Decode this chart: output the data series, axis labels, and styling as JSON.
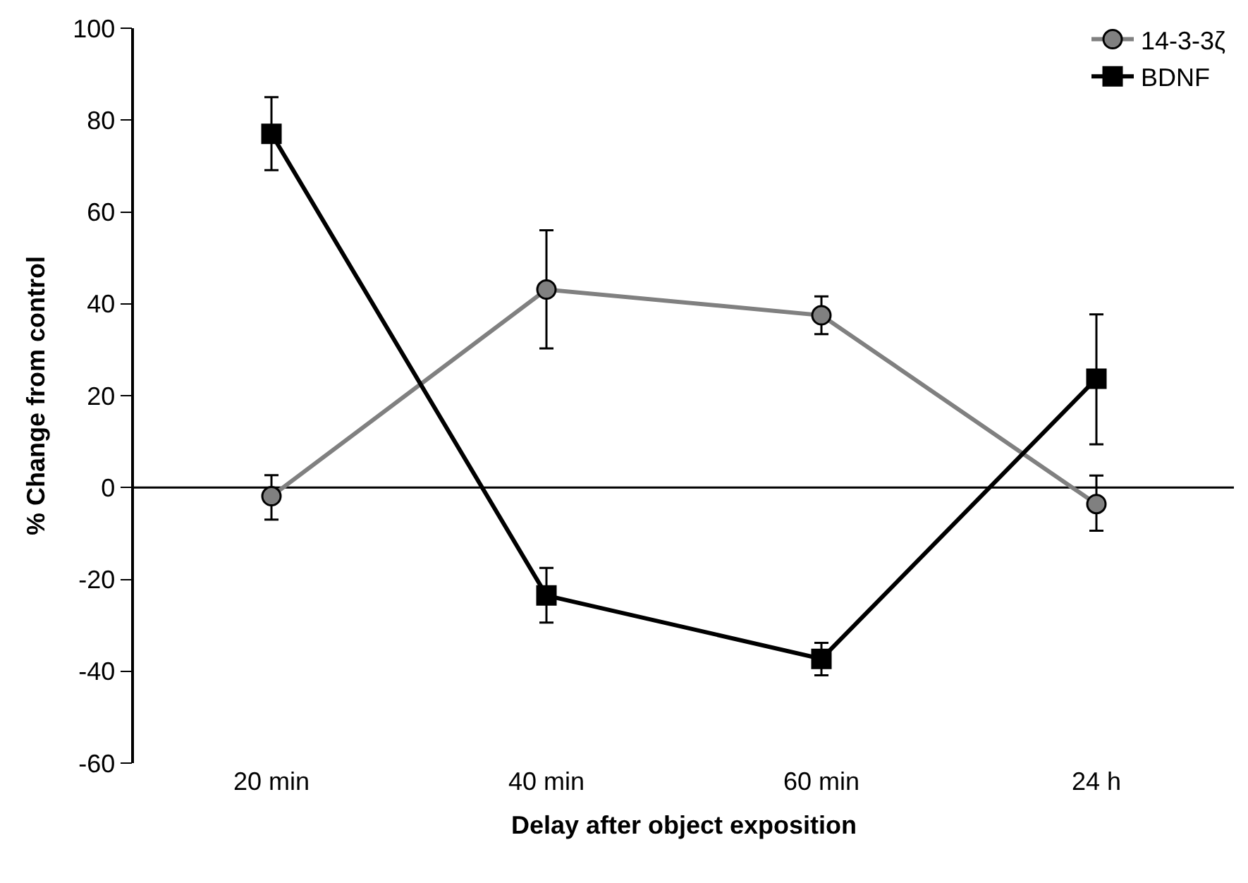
{
  "chart_data": {
    "type": "line",
    "xlabel": "Delay after object exposition",
    "ylabel": "% Change from control",
    "categories": [
      "20 min",
      "40 min",
      "60 min",
      "24 h"
    ],
    "series": [
      {
        "name": "14-3-3ζ",
        "color": "#808080",
        "marker": "circle",
        "values": [
          -1.9,
          43.1,
          37.5,
          -3.6
        ],
        "errors": [
          [
            -7.0,
            2.7
          ],
          [
            30.3,
            56.0
          ],
          [
            33.4,
            41.6
          ],
          [
            -9.4,
            2.6
          ]
        ]
      },
      {
        "name": "BDNF",
        "color": "#000000",
        "marker": "square",
        "values": [
          77.0,
          -23.5,
          -37.3,
          23.7
        ],
        "errors": [
          [
            69.1,
            85.0
          ],
          [
            -29.4,
            -17.5
          ],
          [
            -40.9,
            -33.8
          ],
          [
            9.4,
            37.7
          ]
        ]
      }
    ],
    "ylim": [
      -60,
      100
    ],
    "yticks": [
      -60,
      -40,
      -20,
      0,
      20,
      40,
      60,
      80,
      100
    ],
    "grid": false,
    "ref_lines": [
      {
        "axis": "y",
        "value": 0,
        "color": "#000000",
        "line_style": "solid"
      }
    ],
    "legend": "top right",
    "line_style": "solid"
  }
}
